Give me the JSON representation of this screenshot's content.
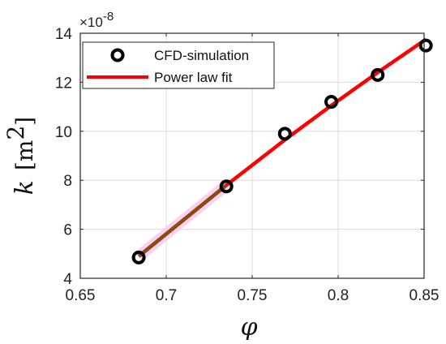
{
  "chart_data": {
    "type": "scatter",
    "x_label": "φ",
    "y_label": "k",
    "y_unit_left": "[m",
    "y_unit_sup": "2",
    "y_unit_right": "]",
    "y_exponent": "×10",
    "y_exponent_power": "-8",
    "xlim": [
      0.65,
      0.85
    ],
    "ylim": [
      4,
      14
    ],
    "x_ticks": [
      "0.65",
      "0.7",
      "0.75",
      "0.8",
      "0.85"
    ],
    "y_ticks": [
      "4",
      "6",
      "8",
      "10",
      "12",
      "14"
    ],
    "grid": true,
    "legend_position": "top-left",
    "series": [
      {
        "name": "CFD-simulation",
        "kind": "markers",
        "color": "#000000",
        "points": [
          {
            "x": 0.684,
            "y": 4.85
          },
          {
            "x": 0.735,
            "y": 7.75
          },
          {
            "x": 0.769,
            "y": 9.9
          },
          {
            "x": 0.796,
            "y": 11.2
          },
          {
            "x": 0.823,
            "y": 12.3
          },
          {
            "x": 0.851,
            "y": 13.5
          }
        ]
      },
      {
        "name": "Power law fit",
        "kind": "line",
        "color": "#ff0000",
        "points": [
          {
            "x": 0.684,
            "y": 4.9
          },
          {
            "x": 0.735,
            "y": 7.8
          },
          {
            "x": 0.769,
            "y": 9.65
          },
          {
            "x": 0.796,
            "y": 11.05
          },
          {
            "x": 0.823,
            "y": 12.4
          },
          {
            "x": 0.851,
            "y": 13.75
          }
        ]
      }
    ]
  }
}
